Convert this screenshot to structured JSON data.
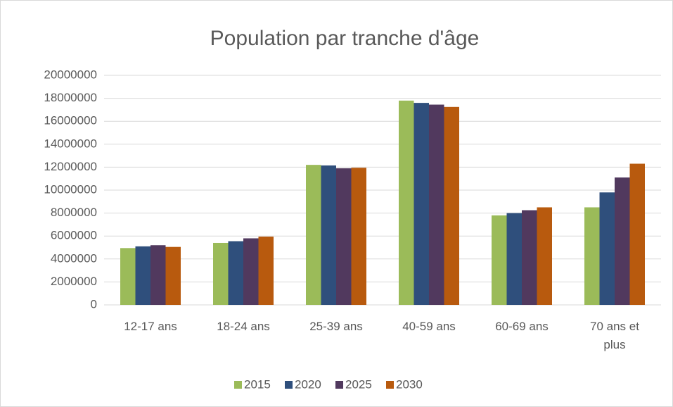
{
  "chart_data": {
    "type": "bar",
    "title": "Population par tranche d'âge",
    "categories": [
      "12-17 ans",
      "18-24 ans",
      "25-39 ans",
      "40-59 ans",
      "60-69 ans",
      "70 ans et plus"
    ],
    "series": [
      {
        "name": "2015",
        "color": "#9bbb59",
        "values": [
          4950000,
          5400000,
          12200000,
          17800000,
          7800000,
          8500000
        ]
      },
      {
        "name": "2020",
        "color": "#2f4f7c",
        "values": [
          5100000,
          5550000,
          12150000,
          17600000,
          8000000,
          9800000
        ]
      },
      {
        "name": "2025",
        "color": "#51395e",
        "values": [
          5200000,
          5800000,
          11900000,
          17450000,
          8250000,
          11100000
        ]
      },
      {
        "name": "2030",
        "color": "#b85a0e",
        "values": [
          5050000,
          5950000,
          11950000,
          17250000,
          8500000,
          12300000
        ]
      }
    ],
    "ylim": [
      0,
      20000000
    ],
    "yticks": [
      0,
      2000000,
      4000000,
      6000000,
      8000000,
      10000000,
      12000000,
      14000000,
      16000000,
      18000000,
      20000000
    ],
    "grid": true,
    "legend": "bottom"
  }
}
